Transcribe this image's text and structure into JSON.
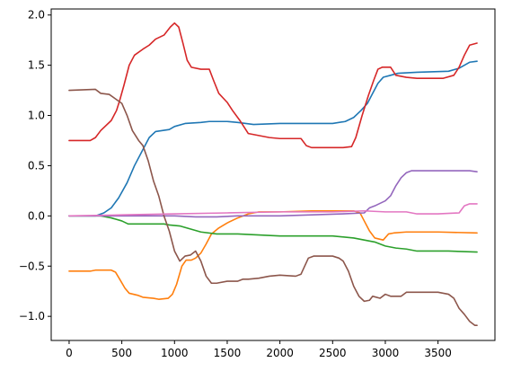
{
  "chart_data": {
    "type": "line",
    "title": "",
    "xlabel": "",
    "ylabel": "",
    "xlim": [
      -170,
      4040
    ],
    "ylim": [
      -1.24,
      2.06
    ],
    "xticks": [
      0,
      500,
      1000,
      1500,
      2000,
      2500,
      3000,
      3500
    ],
    "xtick_labels": [
      "0",
      "500",
      "1000",
      "1500",
      "2000",
      "2500",
      "3000",
      "3500"
    ],
    "yticks": [
      -1.0,
      -0.5,
      0.0,
      0.5,
      1.0,
      1.5,
      2.0
    ],
    "ytick_labels": [
      "−1.0",
      "−0.5",
      "0.0",
      "0.5",
      "1.0",
      "1.5",
      "2.0"
    ],
    "grid": false,
    "legend": "none",
    "series": [
      {
        "color": "#1f77b4",
        "points": [
          [
            0,
            0.0
          ],
          [
            250,
            0.0
          ],
          [
            330,
            0.03
          ],
          [
            400,
            0.08
          ],
          [
            470,
            0.18
          ],
          [
            550,
            0.33
          ],
          [
            620,
            0.5
          ],
          [
            700,
            0.66
          ],
          [
            760,
            0.78
          ],
          [
            820,
            0.84
          ],
          [
            950,
            0.86
          ],
          [
            1000,
            0.89
          ],
          [
            1100,
            0.92
          ],
          [
            1250,
            0.93
          ],
          [
            1330,
            0.94
          ],
          [
            1500,
            0.94
          ],
          [
            1600,
            0.93
          ],
          [
            1750,
            0.91
          ],
          [
            2000,
            0.92
          ],
          [
            2300,
            0.92
          ],
          [
            2500,
            0.92
          ],
          [
            2620,
            0.94
          ],
          [
            2700,
            0.98
          ],
          [
            2770,
            1.05
          ],
          [
            2830,
            1.12
          ],
          [
            2880,
            1.22
          ],
          [
            2930,
            1.32
          ],
          [
            2980,
            1.38
          ],
          [
            3050,
            1.4
          ],
          [
            3120,
            1.42
          ],
          [
            3300,
            1.43
          ],
          [
            3600,
            1.44
          ],
          [
            3700,
            1.47
          ],
          [
            3800,
            1.53
          ],
          [
            3870,
            1.54
          ]
        ]
      },
      {
        "color": "#ff7f0e",
        "points": [
          [
            0,
            -0.55
          ],
          [
            200,
            -0.55
          ],
          [
            250,
            -0.54
          ],
          [
            400,
            -0.54
          ],
          [
            440,
            -0.56
          ],
          [
            480,
            -0.63
          ],
          [
            530,
            -0.72
          ],
          [
            570,
            -0.77
          ],
          [
            650,
            -0.79
          ],
          [
            700,
            -0.81
          ],
          [
            800,
            -0.82
          ],
          [
            850,
            -0.83
          ],
          [
            940,
            -0.82
          ],
          [
            980,
            -0.78
          ],
          [
            1020,
            -0.68
          ],
          [
            1070,
            -0.5
          ],
          [
            1110,
            -0.44
          ],
          [
            1160,
            -0.44
          ],
          [
            1200,
            -0.42
          ],
          [
            1250,
            -0.37
          ],
          [
            1300,
            -0.28
          ],
          [
            1350,
            -0.18
          ],
          [
            1420,
            -0.12
          ],
          [
            1500,
            -0.07
          ],
          [
            1600,
            -0.02
          ],
          [
            1700,
            0.02
          ],
          [
            1800,
            0.04
          ],
          [
            2000,
            0.04
          ],
          [
            2300,
            0.05
          ],
          [
            2600,
            0.05
          ],
          [
            2700,
            0.05
          ],
          [
            2760,
            0.03
          ],
          [
            2800,
            -0.05
          ],
          [
            2850,
            -0.15
          ],
          [
            2900,
            -0.22
          ],
          [
            2980,
            -0.24
          ],
          [
            3030,
            -0.18
          ],
          [
            3080,
            -0.17
          ],
          [
            3200,
            -0.16
          ],
          [
            3500,
            -0.16
          ],
          [
            3870,
            -0.17
          ]
        ]
      },
      {
        "color": "#2ca02c",
        "points": [
          [
            0,
            0.0
          ],
          [
            300,
            0.0
          ],
          [
            400,
            -0.02
          ],
          [
            500,
            -0.05
          ],
          [
            560,
            -0.08
          ],
          [
            700,
            -0.08
          ],
          [
            900,
            -0.08
          ],
          [
            950,
            -0.09
          ],
          [
            1050,
            -0.1
          ],
          [
            1150,
            -0.13
          ],
          [
            1250,
            -0.16
          ],
          [
            1400,
            -0.18
          ],
          [
            1600,
            -0.18
          ],
          [
            1800,
            -0.19
          ],
          [
            2000,
            -0.2
          ],
          [
            2200,
            -0.2
          ],
          [
            2500,
            -0.2
          ],
          [
            2700,
            -0.22
          ],
          [
            2800,
            -0.24
          ],
          [
            2900,
            -0.26
          ],
          [
            3000,
            -0.3
          ],
          [
            3100,
            -0.32
          ],
          [
            3200,
            -0.33
          ],
          [
            3300,
            -0.35
          ],
          [
            3600,
            -0.35
          ],
          [
            3870,
            -0.36
          ]
        ]
      },
      {
        "color": "#d62728",
        "points": [
          [
            0,
            0.75
          ],
          [
            200,
            0.75
          ],
          [
            250,
            0.78
          ],
          [
            300,
            0.85
          ],
          [
            400,
            0.95
          ],
          [
            450,
            1.05
          ],
          [
            480,
            1.15
          ],
          [
            520,
            1.3
          ],
          [
            570,
            1.5
          ],
          [
            620,
            1.6
          ],
          [
            700,
            1.66
          ],
          [
            760,
            1.7
          ],
          [
            820,
            1.76
          ],
          [
            900,
            1.8
          ],
          [
            960,
            1.88
          ],
          [
            1000,
            1.92
          ],
          [
            1040,
            1.88
          ],
          [
            1080,
            1.72
          ],
          [
            1120,
            1.55
          ],
          [
            1160,
            1.48
          ],
          [
            1250,
            1.46
          ],
          [
            1330,
            1.46
          ],
          [
            1370,
            1.35
          ],
          [
            1420,
            1.22
          ],
          [
            1500,
            1.13
          ],
          [
            1550,
            1.05
          ],
          [
            1620,
            0.95
          ],
          [
            1700,
            0.82
          ],
          [
            1800,
            0.8
          ],
          [
            1900,
            0.78
          ],
          [
            2000,
            0.77
          ],
          [
            2200,
            0.77
          ],
          [
            2250,
            0.7
          ],
          [
            2300,
            0.68
          ],
          [
            2600,
            0.68
          ],
          [
            2680,
            0.69
          ],
          [
            2720,
            0.78
          ],
          [
            2780,
            1.0
          ],
          [
            2840,
            1.2
          ],
          [
            2890,
            1.35
          ],
          [
            2930,
            1.46
          ],
          [
            2970,
            1.48
          ],
          [
            3050,
            1.48
          ],
          [
            3100,
            1.4
          ],
          [
            3200,
            1.38
          ],
          [
            3300,
            1.37
          ],
          [
            3550,
            1.37
          ],
          [
            3650,
            1.4
          ],
          [
            3700,
            1.48
          ],
          [
            3750,
            1.6
          ],
          [
            3800,
            1.7
          ],
          [
            3870,
            1.72
          ]
        ]
      },
      {
        "color": "#9467bd",
        "points": [
          [
            0,
            0.0
          ],
          [
            500,
            0.0
          ],
          [
            800,
            0.0
          ],
          [
            1000,
            0.0
          ],
          [
            1200,
            -0.01
          ],
          [
            1400,
            -0.01
          ],
          [
            1600,
            0.0
          ],
          [
            2000,
            0.0
          ],
          [
            2300,
            0.01
          ],
          [
            2600,
            0.02
          ],
          [
            2800,
            0.03
          ],
          [
            2850,
            0.08
          ],
          [
            2900,
            0.1
          ],
          [
            3000,
            0.15
          ],
          [
            3050,
            0.2
          ],
          [
            3100,
            0.3
          ],
          [
            3150,
            0.38
          ],
          [
            3200,
            0.43
          ],
          [
            3250,
            0.45
          ],
          [
            3500,
            0.45
          ],
          [
            3800,
            0.45
          ],
          [
            3870,
            0.44
          ]
        ]
      },
      {
        "color": "#8c564b",
        "points": [
          [
            0,
            1.25
          ],
          [
            250,
            1.26
          ],
          [
            300,
            1.22
          ],
          [
            380,
            1.21
          ],
          [
            420,
            1.18
          ],
          [
            460,
            1.15
          ],
          [
            500,
            1.12
          ],
          [
            550,
            1.0
          ],
          [
            600,
            0.85
          ],
          [
            660,
            0.75
          ],
          [
            700,
            0.7
          ],
          [
            750,
            0.55
          ],
          [
            800,
            0.35
          ],
          [
            850,
            0.2
          ],
          [
            900,
            0.0
          ],
          [
            950,
            -0.15
          ],
          [
            1000,
            -0.35
          ],
          [
            1050,
            -0.45
          ],
          [
            1100,
            -0.4
          ],
          [
            1150,
            -0.39
          ],
          [
            1200,
            -0.35
          ],
          [
            1250,
            -0.45
          ],
          [
            1300,
            -0.6
          ],
          [
            1350,
            -0.67
          ],
          [
            1400,
            -0.67
          ],
          [
            1500,
            -0.65
          ],
          [
            1600,
            -0.65
          ],
          [
            1650,
            -0.63
          ],
          [
            1700,
            -0.63
          ],
          [
            1800,
            -0.62
          ],
          [
            1900,
            -0.6
          ],
          [
            2000,
            -0.59
          ],
          [
            2150,
            -0.6
          ],
          [
            2200,
            -0.58
          ],
          [
            2270,
            -0.42
          ],
          [
            2320,
            -0.4
          ],
          [
            2500,
            -0.4
          ],
          [
            2560,
            -0.42
          ],
          [
            2600,
            -0.45
          ],
          [
            2650,
            -0.55
          ],
          [
            2700,
            -0.7
          ],
          [
            2750,
            -0.8
          ],
          [
            2800,
            -0.85
          ],
          [
            2850,
            -0.84
          ],
          [
            2880,
            -0.8
          ],
          [
            2950,
            -0.82
          ],
          [
            3000,
            -0.78
          ],
          [
            3050,
            -0.8
          ],
          [
            3100,
            -0.8
          ],
          [
            3150,
            -0.8
          ],
          [
            3200,
            -0.76
          ],
          [
            3300,
            -0.76
          ],
          [
            3500,
            -0.76
          ],
          [
            3600,
            -0.78
          ],
          [
            3650,
            -0.82
          ],
          [
            3700,
            -0.92
          ],
          [
            3750,
            -0.98
          ],
          [
            3800,
            -1.05
          ],
          [
            3850,
            -1.09
          ],
          [
            3870,
            -1.09
          ]
        ]
      },
      {
        "color": "#e377c2",
        "points": [
          [
            0,
            0.0
          ],
          [
            500,
            0.01
          ],
          [
            1000,
            0.02
          ],
          [
            1500,
            0.03
          ],
          [
            2000,
            0.04
          ],
          [
            2500,
            0.04
          ],
          [
            2800,
            0.05
          ],
          [
            3000,
            0.04
          ],
          [
            3200,
            0.04
          ],
          [
            3300,
            0.02
          ],
          [
            3500,
            0.02
          ],
          [
            3700,
            0.03
          ],
          [
            3750,
            0.1
          ],
          [
            3800,
            0.12
          ],
          [
            3870,
            0.12
          ]
        ]
      }
    ]
  }
}
